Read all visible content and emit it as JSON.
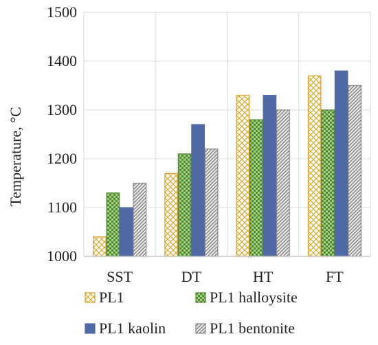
{
  "chart_data": {
    "type": "bar",
    "title": "",
    "xlabel": "",
    "ylabel": "Temperature, °C",
    "categories": [
      "SST",
      "DT",
      "HT",
      "FT"
    ],
    "ylim": [
      1000,
      1500
    ],
    "yticks": [
      1000,
      1100,
      1200,
      1300,
      1400,
      1500
    ],
    "grid": true,
    "legend_position": "bottom",
    "series": [
      {
        "name": "PL1",
        "values": [
          1040,
          1170,
          1330,
          1370
        ],
        "color": "#d8a22a",
        "pattern": "crosshatch-light"
      },
      {
        "name": "PL1 halloysite",
        "values": [
          1130,
          1210,
          1280,
          1300
        ],
        "color": "#4e8a2e",
        "pattern": "checker-green"
      },
      {
        "name": "PL1 kaolin",
        "values": [
          1100,
          1270,
          1330,
          1380
        ],
        "color": "#4f6aa5",
        "pattern": "solid"
      },
      {
        "name": "PL1 bentonite",
        "values": [
          1150,
          1220,
          1300,
          1350
        ],
        "color": "#7a7a7a",
        "pattern": "diagonal-gray"
      }
    ]
  }
}
